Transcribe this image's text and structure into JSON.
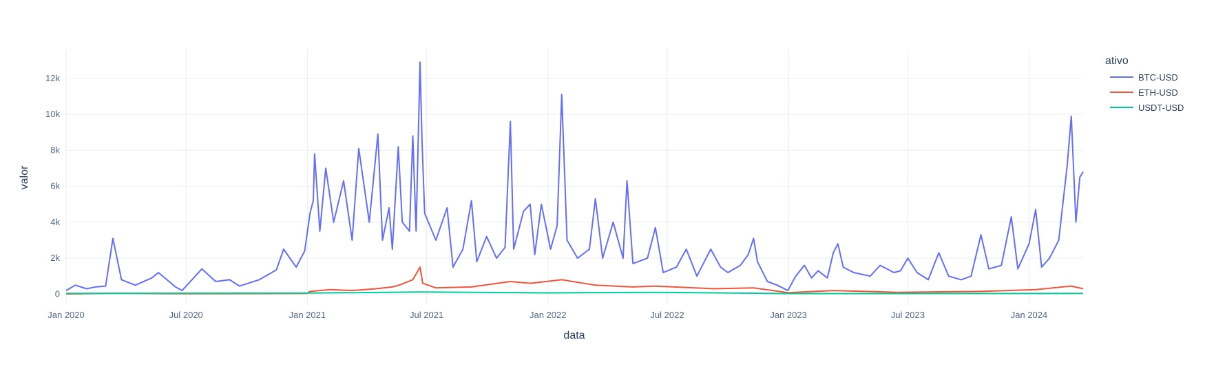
{
  "chart_data": {
    "type": "line",
    "xlabel": "data",
    "ylabel": "valor",
    "legend_title": "ativo",
    "legend_position": "top-right (outside plot)",
    "grid": true,
    "xlim": [
      "2020-01-01",
      "2024-03-23"
    ],
    "ylim": [
      -600,
      13600
    ],
    "x_ticks": [
      {
        "date": "2020-01-01",
        "label": "Jan 2020"
      },
      {
        "date": "2020-07-01",
        "label": "Jul 2020"
      },
      {
        "date": "2021-01-01",
        "label": "Jan 2021"
      },
      {
        "date": "2021-07-01",
        "label": "Jul 2021"
      },
      {
        "date": "2022-01-01",
        "label": "Jan 2022"
      },
      {
        "date": "2022-07-01",
        "label": "Jul 2022"
      },
      {
        "date": "2023-01-01",
        "label": "Jan 2023"
      },
      {
        "date": "2023-07-01",
        "label": "Jul 2023"
      },
      {
        "date": "2024-01-01",
        "label": "Jan 2024"
      }
    ],
    "y_ticks": [
      {
        "value": 0,
        "label": "0"
      },
      {
        "value": 2000,
        "label": "2k"
      },
      {
        "value": 4000,
        "label": "4k"
      },
      {
        "value": 6000,
        "label": "6k"
      },
      {
        "value": 8000,
        "label": "8k"
      },
      {
        "value": 10000,
        "label": "10k"
      },
      {
        "value": 12000,
        "label": "12k"
      }
    ],
    "series": [
      {
        "name": "BTC-USD",
        "color": "#636efa",
        "points": [
          [
            "2020-01-01",
            200
          ],
          [
            "2020-01-15",
            500
          ],
          [
            "2020-02-01",
            300
          ],
          [
            "2020-02-15",
            400
          ],
          [
            "2020-03-01",
            450
          ],
          [
            "2020-03-12",
            3100
          ],
          [
            "2020-03-25",
            800
          ],
          [
            "2020-04-15",
            500
          ],
          [
            "2020-05-10",
            900
          ],
          [
            "2020-05-20",
            1200
          ],
          [
            "2020-06-15",
            400
          ],
          [
            "2020-06-25",
            200
          ],
          [
            "2020-07-25",
            1400
          ],
          [
            "2020-08-15",
            700
          ],
          [
            "2020-09-05",
            800
          ],
          [
            "2020-09-20",
            450
          ],
          [
            "2020-10-20",
            800
          ],
          [
            "2020-11-15",
            1350
          ],
          [
            "2020-11-26",
            2500
          ],
          [
            "2020-12-15",
            1500
          ],
          [
            "2020-12-28",
            2400
          ],
          [
            "2021-01-05",
            4500
          ],
          [
            "2021-01-10",
            5200
          ],
          [
            "2021-01-12",
            7800
          ],
          [
            "2021-01-20",
            3500
          ],
          [
            "2021-01-29",
            7000
          ],
          [
            "2021-02-10",
            4000
          ],
          [
            "2021-02-25",
            6300
          ],
          [
            "2021-03-10",
            3000
          ],
          [
            "2021-03-20",
            8100
          ],
          [
            "2021-04-05",
            4000
          ],
          [
            "2021-04-18",
            8900
          ],
          [
            "2021-04-25",
            3000
          ],
          [
            "2021-05-05",
            4800
          ],
          [
            "2021-05-10",
            2500
          ],
          [
            "2021-05-19",
            8200
          ],
          [
            "2021-05-25",
            4000
          ],
          [
            "2021-06-05",
            3500
          ],
          [
            "2021-06-10",
            8800
          ],
          [
            "2021-06-15",
            3500
          ],
          [
            "2021-06-21",
            12900
          ],
          [
            "2021-06-24",
            8500
          ],
          [
            "2021-06-28",
            4500
          ],
          [
            "2021-07-15",
            3000
          ],
          [
            "2021-08-01",
            4800
          ],
          [
            "2021-08-10",
            1500
          ],
          [
            "2021-08-25",
            2500
          ],
          [
            "2021-09-07",
            5200
          ],
          [
            "2021-09-15",
            1800
          ],
          [
            "2021-09-30",
            3200
          ],
          [
            "2021-10-15",
            2000
          ],
          [
            "2021-10-28",
            2600
          ],
          [
            "2021-11-05",
            9600
          ],
          [
            "2021-11-10",
            2500
          ],
          [
            "2021-11-25",
            4600
          ],
          [
            "2021-12-05",
            5000
          ],
          [
            "2021-12-12",
            2200
          ],
          [
            "2021-12-22",
            5000
          ],
          [
            "2022-01-05",
            2500
          ],
          [
            "2022-01-15",
            3800
          ],
          [
            "2022-01-22",
            11100
          ],
          [
            "2022-01-30",
            3000
          ],
          [
            "2022-02-15",
            2000
          ],
          [
            "2022-03-05",
            2500
          ],
          [
            "2022-03-14",
            5300
          ],
          [
            "2022-03-25",
            2000
          ],
          [
            "2022-04-10",
            4000
          ],
          [
            "2022-04-25",
            2000
          ],
          [
            "2022-05-01",
            6300
          ],
          [
            "2022-05-10",
            1700
          ],
          [
            "2022-06-01",
            2000
          ],
          [
            "2022-06-13",
            3700
          ],
          [
            "2022-06-25",
            1200
          ],
          [
            "2022-07-15",
            1500
          ],
          [
            "2022-07-30",
            2500
          ],
          [
            "2022-08-15",
            1000
          ],
          [
            "2022-09-05",
            2500
          ],
          [
            "2022-09-20",
            1500
          ],
          [
            "2022-10-01",
            1200
          ],
          [
            "2022-10-20",
            1600
          ],
          [
            "2022-11-01",
            2200
          ],
          [
            "2022-11-09",
            3100
          ],
          [
            "2022-11-15",
            1800
          ],
          [
            "2022-11-30",
            700
          ],
          [
            "2022-12-15",
            500
          ],
          [
            "2022-12-31",
            200
          ],
          [
            "2023-01-12",
            1000
          ],
          [
            "2023-01-25",
            1600
          ],
          [
            "2023-02-05",
            900
          ],
          [
            "2023-02-15",
            1300
          ],
          [
            "2023-03-01",
            900
          ],
          [
            "2023-03-10",
            2300
          ],
          [
            "2023-03-17",
            2800
          ],
          [
            "2023-03-25",
            1500
          ],
          [
            "2023-04-10",
            1200
          ],
          [
            "2023-05-05",
            1000
          ],
          [
            "2023-05-20",
            1600
          ],
          [
            "2023-06-10",
            1200
          ],
          [
            "2023-06-20",
            1300
          ],
          [
            "2023-07-01",
            2000
          ],
          [
            "2023-07-15",
            1200
          ],
          [
            "2023-08-01",
            800
          ],
          [
            "2023-08-17",
            2300
          ],
          [
            "2023-09-01",
            1000
          ],
          [
            "2023-09-20",
            800
          ],
          [
            "2023-10-05",
            1000
          ],
          [
            "2023-10-20",
            3300
          ],
          [
            "2023-11-01",
            1400
          ],
          [
            "2023-11-20",
            1600
          ],
          [
            "2023-12-05",
            4300
          ],
          [
            "2023-12-15",
            1400
          ],
          [
            "2024-01-01",
            2800
          ],
          [
            "2024-01-11",
            4700
          ],
          [
            "2024-01-20",
            1500
          ],
          [
            "2024-02-01",
            2000
          ],
          [
            "2024-02-15",
            3000
          ],
          [
            "2024-02-28",
            7200
          ],
          [
            "2024-03-05",
            9900
          ],
          [
            "2024-03-12",
            4000
          ],
          [
            "2024-03-18",
            6500
          ],
          [
            "2024-03-23",
            6800
          ]
        ]
      },
      {
        "name": "ETH-USD",
        "color": "#ef553b",
        "points": [
          [
            "2020-01-01",
            10
          ],
          [
            "2020-03-12",
            50
          ],
          [
            "2020-06-30",
            20
          ],
          [
            "2020-11-01",
            30
          ],
          [
            "2020-12-31",
            40
          ],
          [
            "2021-01-05",
            150
          ],
          [
            "2021-02-05",
            250
          ],
          [
            "2021-03-10",
            200
          ],
          [
            "2021-04-15",
            300
          ],
          [
            "2021-05-10",
            400
          ],
          [
            "2021-05-20",
            500
          ],
          [
            "2021-06-10",
            800
          ],
          [
            "2021-06-21",
            1500
          ],
          [
            "2021-06-25",
            600
          ],
          [
            "2021-07-15",
            350
          ],
          [
            "2021-09-07",
            400
          ],
          [
            "2021-11-05",
            700
          ],
          [
            "2021-12-05",
            600
          ],
          [
            "2022-01-22",
            800
          ],
          [
            "2022-03-14",
            500
          ],
          [
            "2022-05-10",
            400
          ],
          [
            "2022-06-13",
            450
          ],
          [
            "2022-09-10",
            300
          ],
          [
            "2022-11-09",
            350
          ],
          [
            "2022-12-31",
            80
          ],
          [
            "2023-03-10",
            200
          ],
          [
            "2023-06-15",
            100
          ],
          [
            "2023-10-20",
            150
          ],
          [
            "2024-01-11",
            250
          ],
          [
            "2024-03-05",
            450
          ],
          [
            "2024-03-23",
            300
          ]
        ]
      },
      {
        "name": "USDT-USD",
        "color": "#00cc96",
        "points": [
          [
            "2020-01-01",
            40
          ],
          [
            "2020-06-30",
            50
          ],
          [
            "2021-01-01",
            60
          ],
          [
            "2021-06-21",
            120
          ],
          [
            "2022-01-01",
            70
          ],
          [
            "2022-06-13",
            100
          ],
          [
            "2023-01-01",
            30
          ],
          [
            "2024-03-23",
            40
          ]
        ]
      }
    ]
  }
}
